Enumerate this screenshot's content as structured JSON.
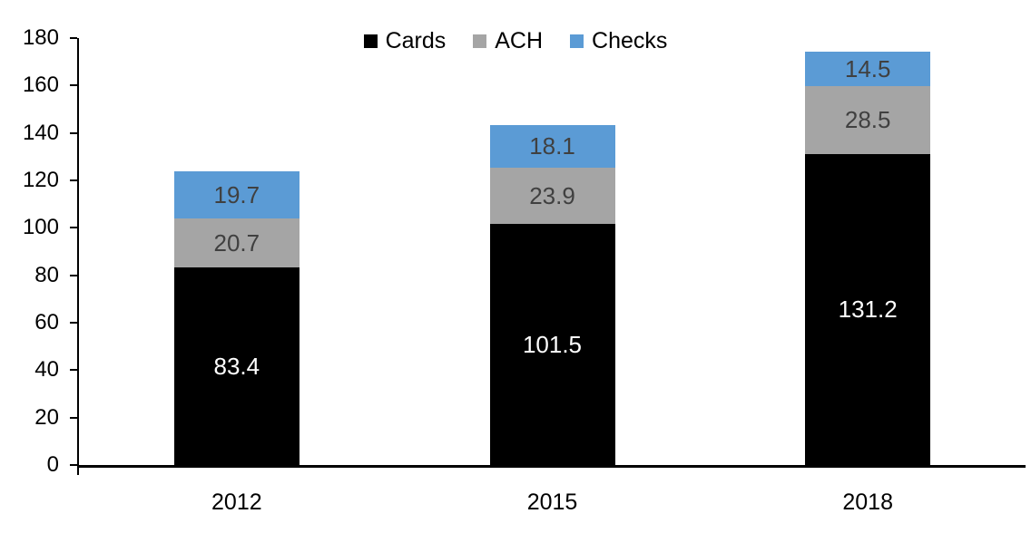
{
  "chart_data": {
    "type": "bar",
    "stacked": true,
    "title": "",
    "categories": [
      "2012",
      "2015",
      "2018"
    ],
    "series": [
      {
        "name": "Cards",
        "color": "#000000",
        "label_color": "#FFFFFF",
        "values": [
          83.4,
          101.5,
          131.2
        ]
      },
      {
        "name": "ACH",
        "color": "#A5A5A5",
        "label_color": "#404040",
        "values": [
          20.7,
          23.9,
          28.5
        ]
      },
      {
        "name": "Checks",
        "color": "#5B9BD5",
        "label_color": "#404040",
        "values": [
          19.7,
          18.1,
          14.5
        ]
      }
    ],
    "totals": [
      123.8,
      143.5,
      174.2
    ],
    "ylim": [
      0,
      180
    ],
    "ytick_step": 20,
    "yticks": [
      0,
      20,
      40,
      60,
      80,
      100,
      120,
      140,
      160,
      180
    ],
    "xlabel": "",
    "ylabel": "",
    "grid": false,
    "legend_position": "top-center",
    "legend_entries": [
      "Cards",
      "ACH",
      "Checks"
    ],
    "axis_color": "#000000",
    "background_color": "#FFFFFF",
    "value_decimals": 1
  }
}
